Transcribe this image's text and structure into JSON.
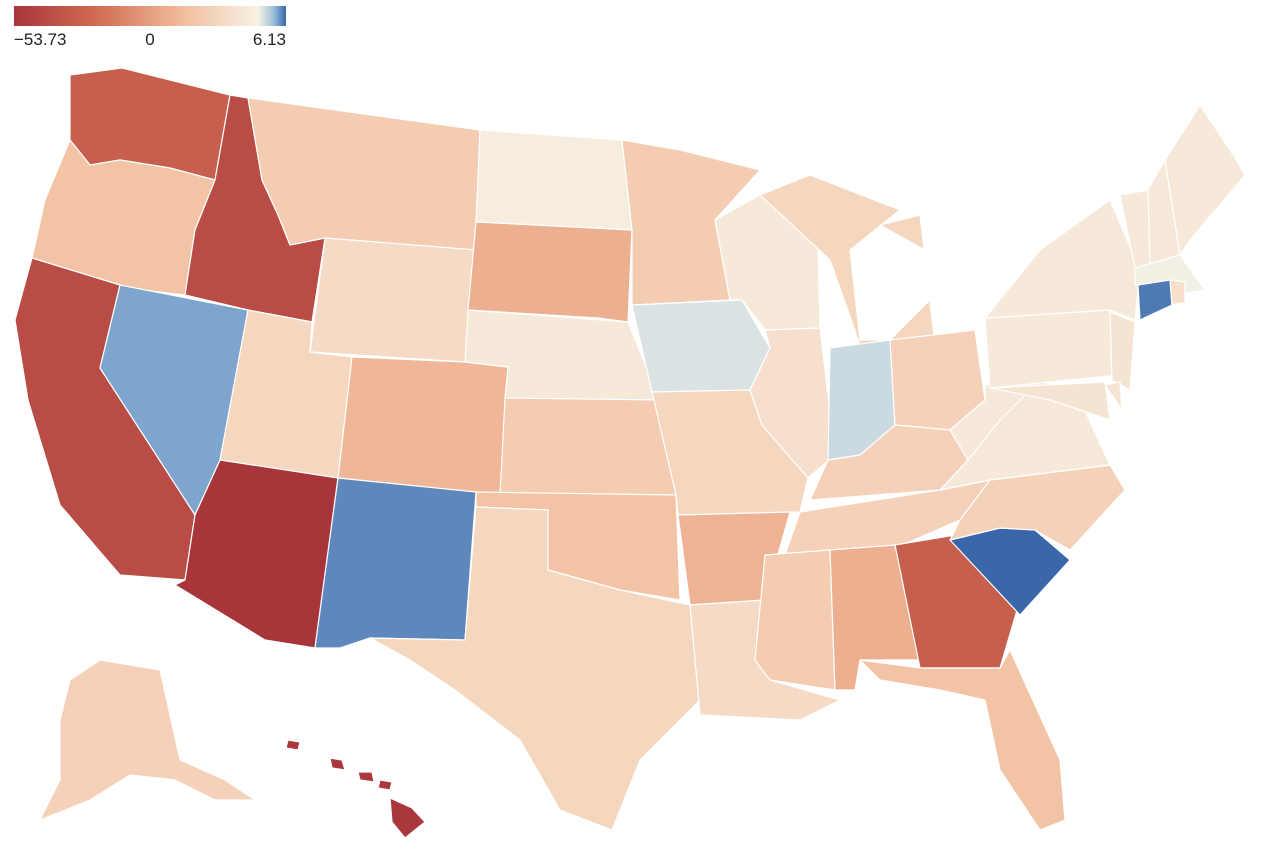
{
  "legend": {
    "min_label": "−53.73",
    "mid_label": "0",
    "max_label": "6.13",
    "min": -53.73,
    "max": 6.13,
    "colors": [
      "#a8353a",
      "#d36e55",
      "#f2bf9f",
      "#f8f2e6",
      "#9cc1dc",
      "#3a66aa"
    ]
  },
  "map_data": {
    "type": "choropleth-us-states",
    "values": {
      "WA": -38,
      "OR": -10,
      "CA": -45,
      "NV": 4,
      "ID": -45,
      "MT": -8,
      "WY": -5,
      "UT": -6,
      "AZ": -53.73,
      "CO": -13,
      "NM": 5,
      "ND": -1,
      "SD": -15,
      "NE": -2,
      "KS": -8,
      "OK": -10,
      "TX": -6,
      "MN": -8,
      "IA": 1,
      "MO": -6,
      "AR": -14,
      "LA": -5,
      "WI": -2,
      "IL": -4,
      "MI": -6,
      "IN": 1.5,
      "OH": -7,
      "KY": -7,
      "TN": -7,
      "MS": -8,
      "AL": -15,
      "GA": -38,
      "FL": -10,
      "SC": 6.13,
      "NC": -7,
      "VA": -2,
      "WV": -2,
      "PA": -2,
      "NY": -2,
      "ME": -2,
      "VT": -2,
      "NH": -2,
      "MA": 0.2,
      "CT": 5.5,
      "RI": -4,
      "NJ": -3,
      "DE": -3,
      "MD": -3,
      "AK": -7,
      "HI": -53
    }
  }
}
